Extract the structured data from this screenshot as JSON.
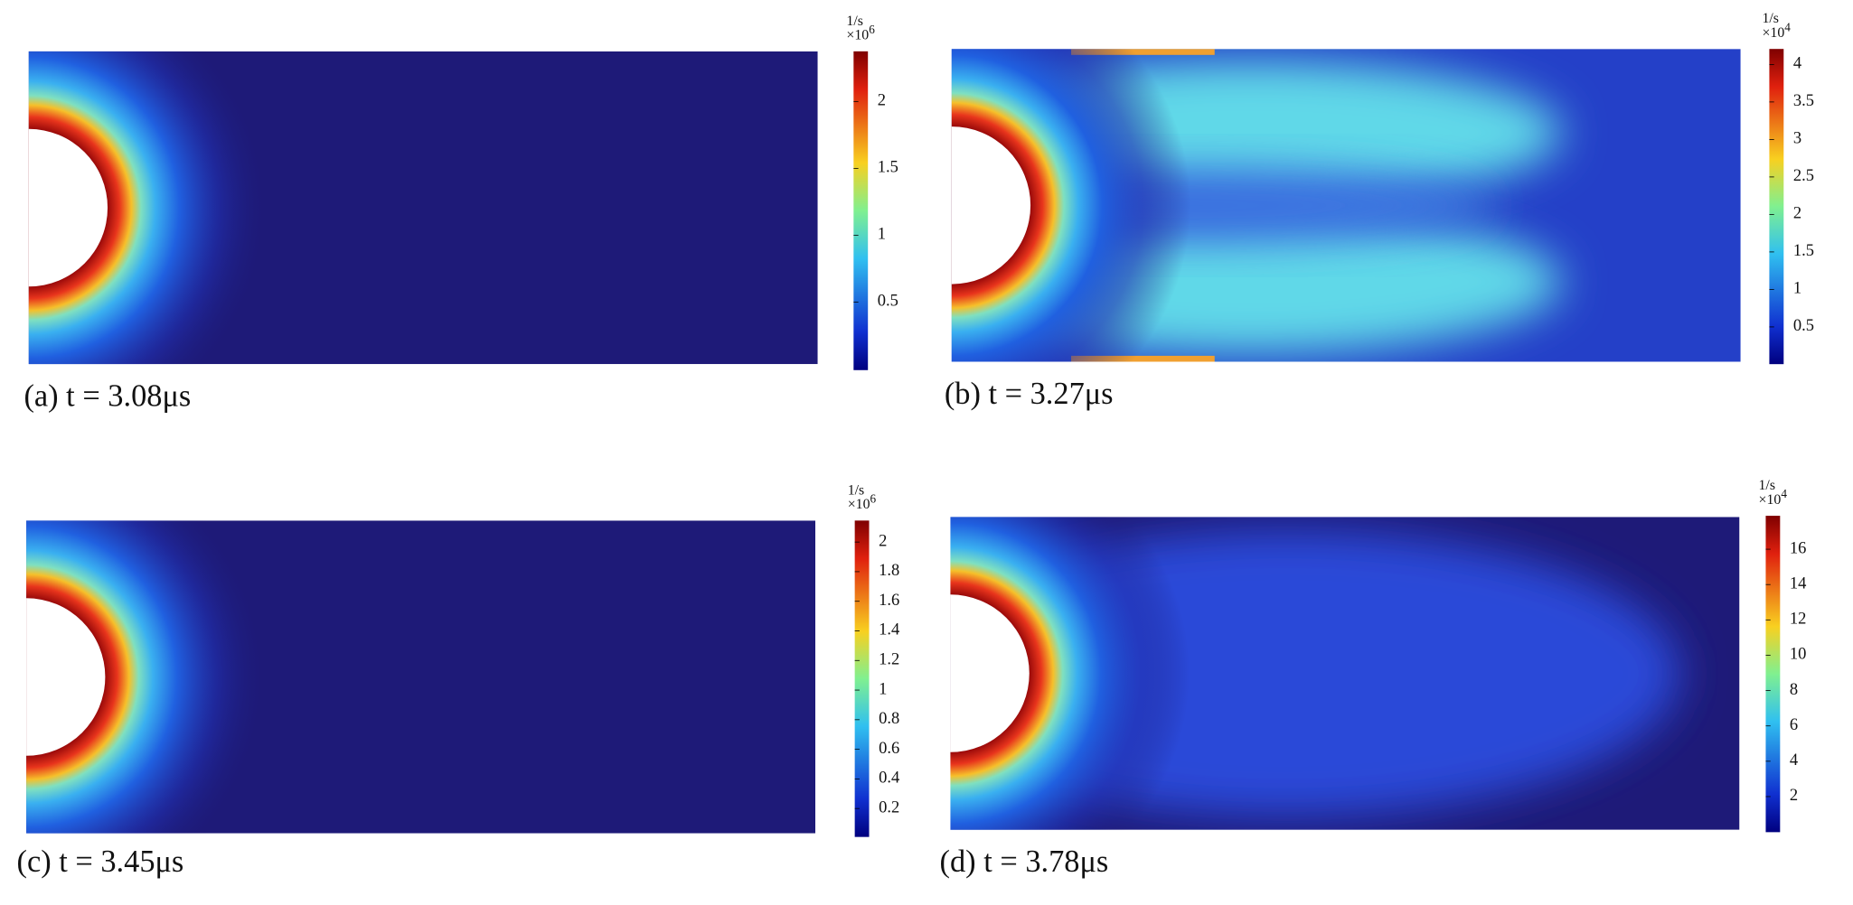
{
  "panels": [
    {
      "caption": "(a) t = 3.08μs",
      "colorbar": {
        "unit": "1/s",
        "base": "×10",
        "exponent": "6",
        "ticks": [
          "2",
          "1.5",
          "1",
          "0.5"
        ]
      }
    },
    {
      "caption": "(b) t = 3.27μs",
      "colorbar": {
        "unit": "1/s",
        "base": "×10",
        "exponent": "4",
        "ticks": [
          "4",
          "3.5",
          "3",
          "2.5",
          "2",
          "1.5",
          "1",
          "0.5"
        ]
      }
    },
    {
      "caption": "(c) t = 3.45μs",
      "colorbar": {
        "unit": "1/s",
        "base": "×10",
        "exponent": "6",
        "ticks": [
          "2",
          "1.8",
          "1.6",
          "1.4",
          "1.2",
          "1",
          "0.8",
          "0.6",
          "0.4",
          "0.2"
        ]
      }
    },
    {
      "caption": "(d) t = 3.78μs",
      "colorbar": {
        "unit": "1/s",
        "base": "×10",
        "exponent": "4",
        "ticks": [
          "16",
          "14",
          "12",
          "10",
          "8",
          "6",
          "4",
          "2"
        ]
      }
    }
  ]
}
